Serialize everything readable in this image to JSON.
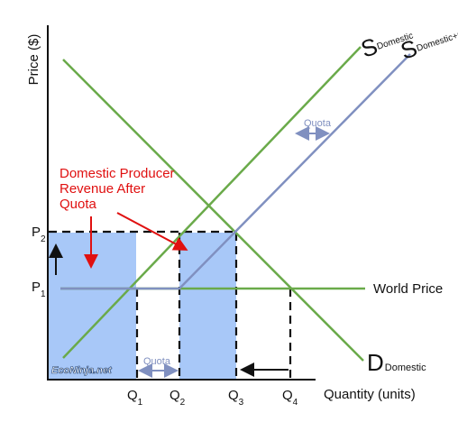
{
  "axes": {
    "y_label": "Price ($)",
    "x_label": "Quantity (units)"
  },
  "price_labels": {
    "p1": {
      "main": "P",
      "sub": "1"
    },
    "p2": {
      "main": "P",
      "sub": "2"
    }
  },
  "quantity_labels": [
    {
      "main": "Q",
      "sub": "1"
    },
    {
      "main": "Q",
      "sub": "2"
    },
    {
      "main": "Q",
      "sub": "3"
    },
    {
      "main": "Q",
      "sub": "4"
    }
  ],
  "curves": {
    "supply_domestic": {
      "main": "S",
      "sub": "Domestic"
    },
    "supply_plus_quota": {
      "main": "S",
      "sub": "Domestic+Quota"
    },
    "demand_domestic": {
      "main": "D",
      "sub": "Domestic"
    },
    "world_price": "World Price"
  },
  "annotations": {
    "quota_upper": "Quota",
    "quota_lower": "Quota",
    "revenue_line1": "Domestic Producer",
    "revenue_line2": "Revenue After",
    "revenue_line3": "Quota"
  },
  "watermark": "EcoNinja.net",
  "colors": {
    "supply_green": "#6aaa4a",
    "quota_supply_blue": "#8090c0",
    "revenue_fill": "#a8c8f8",
    "annotation_red": "#e01010",
    "axis": "#111111"
  }
}
